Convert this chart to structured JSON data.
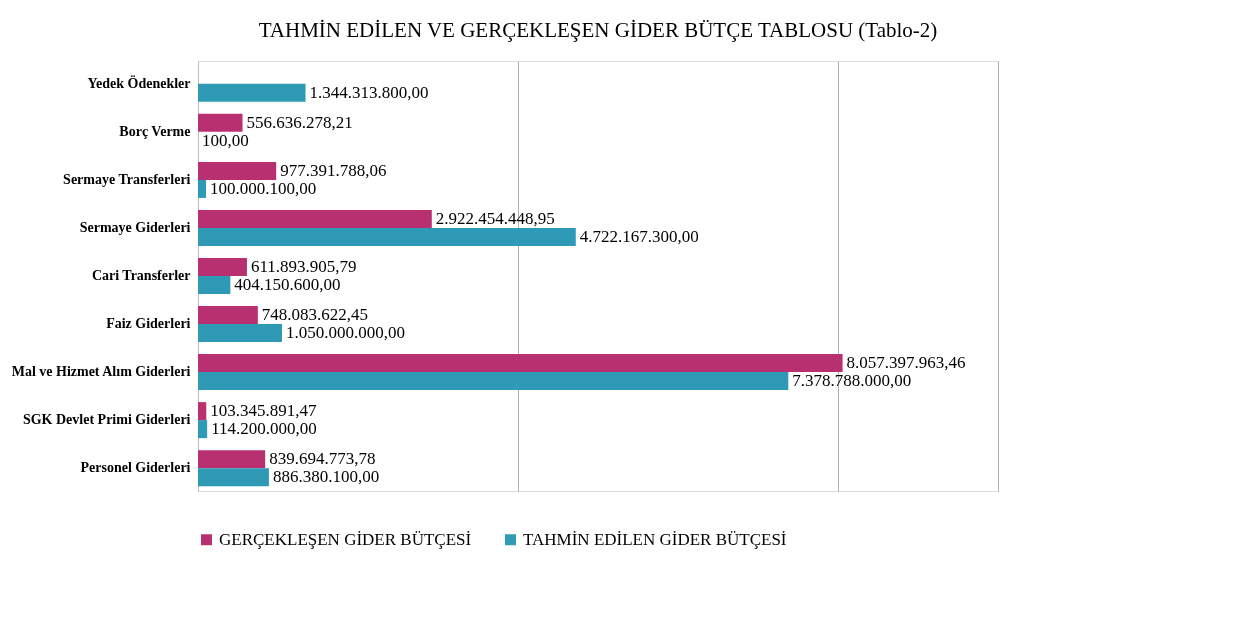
{
  "chart_data": {
    "type": "bar",
    "orientation": "horizontal",
    "title": "TAHMİN EDİLEN VE GERÇEKLEŞEN GİDER BÜTÇE TABLOSU (Tablo-2)",
    "categories": [
      "Yedek Ödenekler",
      "Borç Verme",
      "Sermaye Transferleri",
      "Sermaye Giderleri",
      "Cari Transferler",
      "Faiz Giderleri",
      "Mal ve Hizmet Alım Giderleri",
      "SGK Devlet Primi Giderleri",
      "Personel Giderleri"
    ],
    "series": [
      {
        "name": "GERÇEKLEŞEN GİDER BÜTÇESİ",
        "color": "#b8306f",
        "values": [
          null,
          556636278.21,
          977391788.06,
          2922454448.95,
          611893905.79,
          748083622.45,
          8057397963.46,
          103345891.47,
          839694773.78
        ],
        "value_labels": [
          null,
          "556.636.278,21",
          "977.391.788,06",
          "2.922.454.448,95",
          "611.893.905,79",
          "748.083.622,45",
          "8.057.397.963,46",
          "103.345.891,47",
          "839.694.773,78"
        ]
      },
      {
        "name": "TAHMİN EDİLEN GİDER BÜTÇESİ",
        "color": "#2f9ab6",
        "values": [
          1344313800.0,
          100.0,
          100000100.0,
          4722167300.0,
          404150600.0,
          1050000000.0,
          7378788000.0,
          114200000.0,
          886380100.0
        ],
        "value_labels": [
          "1.344.313.800,00",
          "100,00",
          "100.000.100,00",
          "4.722.167.300,00",
          "404.150.600,00",
          "1.050.000.000,00",
          "7.378.788.000,00",
          "114.200.000,00",
          "886.380.100,00"
        ]
      }
    ],
    "xlim": [
      0,
      10000000000
    ],
    "xticks": [
      {
        "value": 0,
        "label": null
      },
      {
        "value": 4000000000,
        "label": null
      },
      {
        "value": 8000000000,
        "label": null
      },
      {
        "value": 10000000000,
        "label": null
      }
    ],
    "tick_labels": "y",
    "grid": "x",
    "legend": "bottom"
  }
}
